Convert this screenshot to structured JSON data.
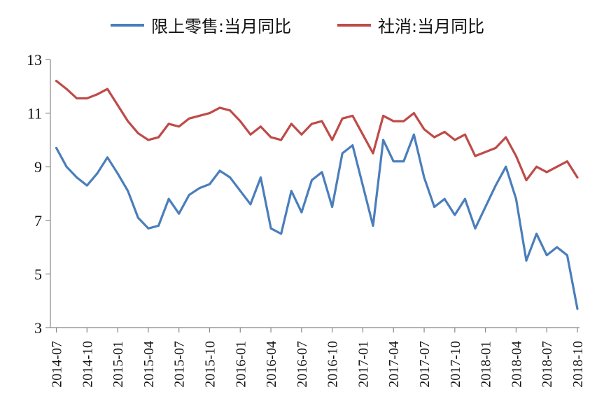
{
  "chart_data": {
    "type": "line",
    "title": "",
    "xlabel": "",
    "ylabel": "",
    "ylim": [
      3,
      13
    ],
    "yticks": [
      "3",
      "5",
      "7",
      "9",
      "11",
      "13"
    ],
    "grid": false,
    "legend_position": "top",
    "x": [
      "2014-07",
      "2014-08",
      "2014-09",
      "2014-10",
      "2014-11",
      "2014-12",
      "2015-01",
      "2015-02",
      "2015-03",
      "2015-04",
      "2015-05",
      "2015-06",
      "2015-07",
      "2015-08",
      "2015-09",
      "2015-10",
      "2015-11",
      "2015-12",
      "2016-01",
      "2016-02",
      "2016-03",
      "2016-04",
      "2016-05",
      "2016-06",
      "2016-07",
      "2016-08",
      "2016-09",
      "2016-10",
      "2016-11",
      "2016-12",
      "2017-01",
      "2017-02",
      "2017-03",
      "2017-04",
      "2017-05",
      "2017-06",
      "2017-07",
      "2017-08",
      "2017-09",
      "2017-10",
      "2017-11",
      "2017-12",
      "2018-01",
      "2018-02",
      "2018-03",
      "2018-04",
      "2018-05",
      "2018-06",
      "2018-07",
      "2018-08",
      "2018-09",
      "2018-10"
    ],
    "x_tick_labels": [
      "2014-07",
      "2014-10",
      "2015-01",
      "2015-04",
      "2015-07",
      "2015-10",
      "2016-01",
      "2016-04",
      "2016-07",
      "2016-10",
      "2017-01",
      "2017-04",
      "2017-07",
      "2017-10",
      "2018-01",
      "2018-04",
      "2018-07",
      "2018-10"
    ],
    "series": [
      {
        "name": "限上零售:当月同比",
        "color": "#4a7ebb",
        "values": [
          9.7,
          9.0,
          8.6,
          8.3,
          8.75,
          9.35,
          8.75,
          8.1,
          7.1,
          6.7,
          6.8,
          7.8,
          7.25,
          7.95,
          8.2,
          8.35,
          8.85,
          8.6,
          8.1,
          7.6,
          8.6,
          6.7,
          6.5,
          8.1,
          7.3,
          8.5,
          8.8,
          7.5,
          9.5,
          9.8,
          8.3,
          6.8,
          10.0,
          9.2,
          9.2,
          10.2,
          8.6,
          7.5,
          7.8,
          7.2,
          7.8,
          6.7,
          7.5,
          8.3,
          9.0,
          7.8,
          5.5,
          6.5,
          5.7,
          6.0,
          5.7,
          3.7
        ]
      },
      {
        "name": "社消:当月同比",
        "color": "#be4b48",
        "values": [
          12.2,
          11.9,
          11.55,
          11.55,
          11.7,
          11.9,
          11.3,
          10.7,
          10.25,
          10.0,
          10.1,
          10.6,
          10.5,
          10.8,
          10.9,
          11.0,
          11.2,
          11.1,
          10.7,
          10.2,
          10.5,
          10.1,
          10.0,
          10.6,
          10.2,
          10.6,
          10.7,
          10.0,
          10.8,
          10.9,
          10.2,
          9.5,
          10.9,
          10.7,
          10.7,
          11.0,
          10.4,
          10.1,
          10.3,
          10.0,
          10.2,
          9.4,
          9.55,
          9.7,
          10.1,
          9.4,
          8.5,
          9.0,
          8.8,
          9.0,
          9.2,
          8.6
        ]
      }
    ]
  }
}
